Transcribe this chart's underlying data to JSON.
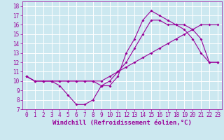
{
  "xlabel": "Windchill (Refroidissement éolien,°C)",
  "bg_color": "#cce8f0",
  "line_color": "#990099",
  "grid_color": "#ffffff",
  "xlim": [
    -0.5,
    23.5
  ],
  "ylim": [
    7,
    18.5
  ],
  "xticks": [
    0,
    1,
    2,
    3,
    4,
    5,
    6,
    7,
    8,
    9,
    10,
    11,
    12,
    13,
    14,
    15,
    16,
    17,
    18,
    19,
    20,
    21,
    22,
    23
  ],
  "yticks": [
    7,
    8,
    9,
    10,
    11,
    12,
    13,
    14,
    15,
    16,
    17,
    18
  ],
  "line1_x": [
    0,
    1,
    2,
    3,
    4,
    5,
    6,
    7,
    8,
    9,
    10,
    11,
    12,
    13,
    14,
    15,
    16,
    17,
    18,
    19,
    20,
    21,
    22,
    23
  ],
  "line1_y": [
    10.5,
    10.0,
    10.0,
    10.0,
    9.5,
    8.5,
    7.5,
    7.5,
    8.0,
    9.5,
    9.5,
    10.5,
    13.0,
    14.5,
    16.5,
    17.5,
    17.0,
    16.5,
    16.0,
    15.5,
    14.5,
    13.0,
    12.0,
    12.0
  ],
  "line2_x": [
    0,
    1,
    2,
    3,
    4,
    5,
    6,
    7,
    8,
    9,
    10,
    11,
    12,
    13,
    14,
    15,
    16,
    17,
    18,
    19,
    20,
    21,
    22,
    23
  ],
  "line2_y": [
    10.5,
    10.0,
    10.0,
    10.0,
    10.0,
    10.0,
    10.0,
    10.0,
    10.0,
    10.0,
    10.5,
    11.0,
    11.5,
    12.0,
    12.5,
    13.0,
    13.5,
    14.0,
    14.5,
    15.0,
    15.5,
    16.0,
    16.0,
    16.0
  ],
  "line3_x": [
    0,
    1,
    2,
    3,
    4,
    5,
    6,
    7,
    8,
    9,
    10,
    11,
    12,
    13,
    14,
    15,
    16,
    17,
    18,
    19,
    20,
    21,
    22,
    23
  ],
  "line3_y": [
    10.5,
    10.0,
    10.0,
    10.0,
    10.0,
    10.0,
    10.0,
    10.0,
    10.0,
    9.5,
    10.0,
    11.0,
    12.0,
    13.5,
    15.0,
    16.5,
    16.5,
    16.0,
    16.0,
    16.0,
    15.5,
    14.5,
    12.0,
    12.0
  ],
  "tick_fontsize": 5.5,
  "label_fontsize": 6.5,
  "fig_width": 3.2,
  "fig_height": 2.0,
  "dpi": 100,
  "marker_size": 2.0,
  "line_width": 0.8
}
